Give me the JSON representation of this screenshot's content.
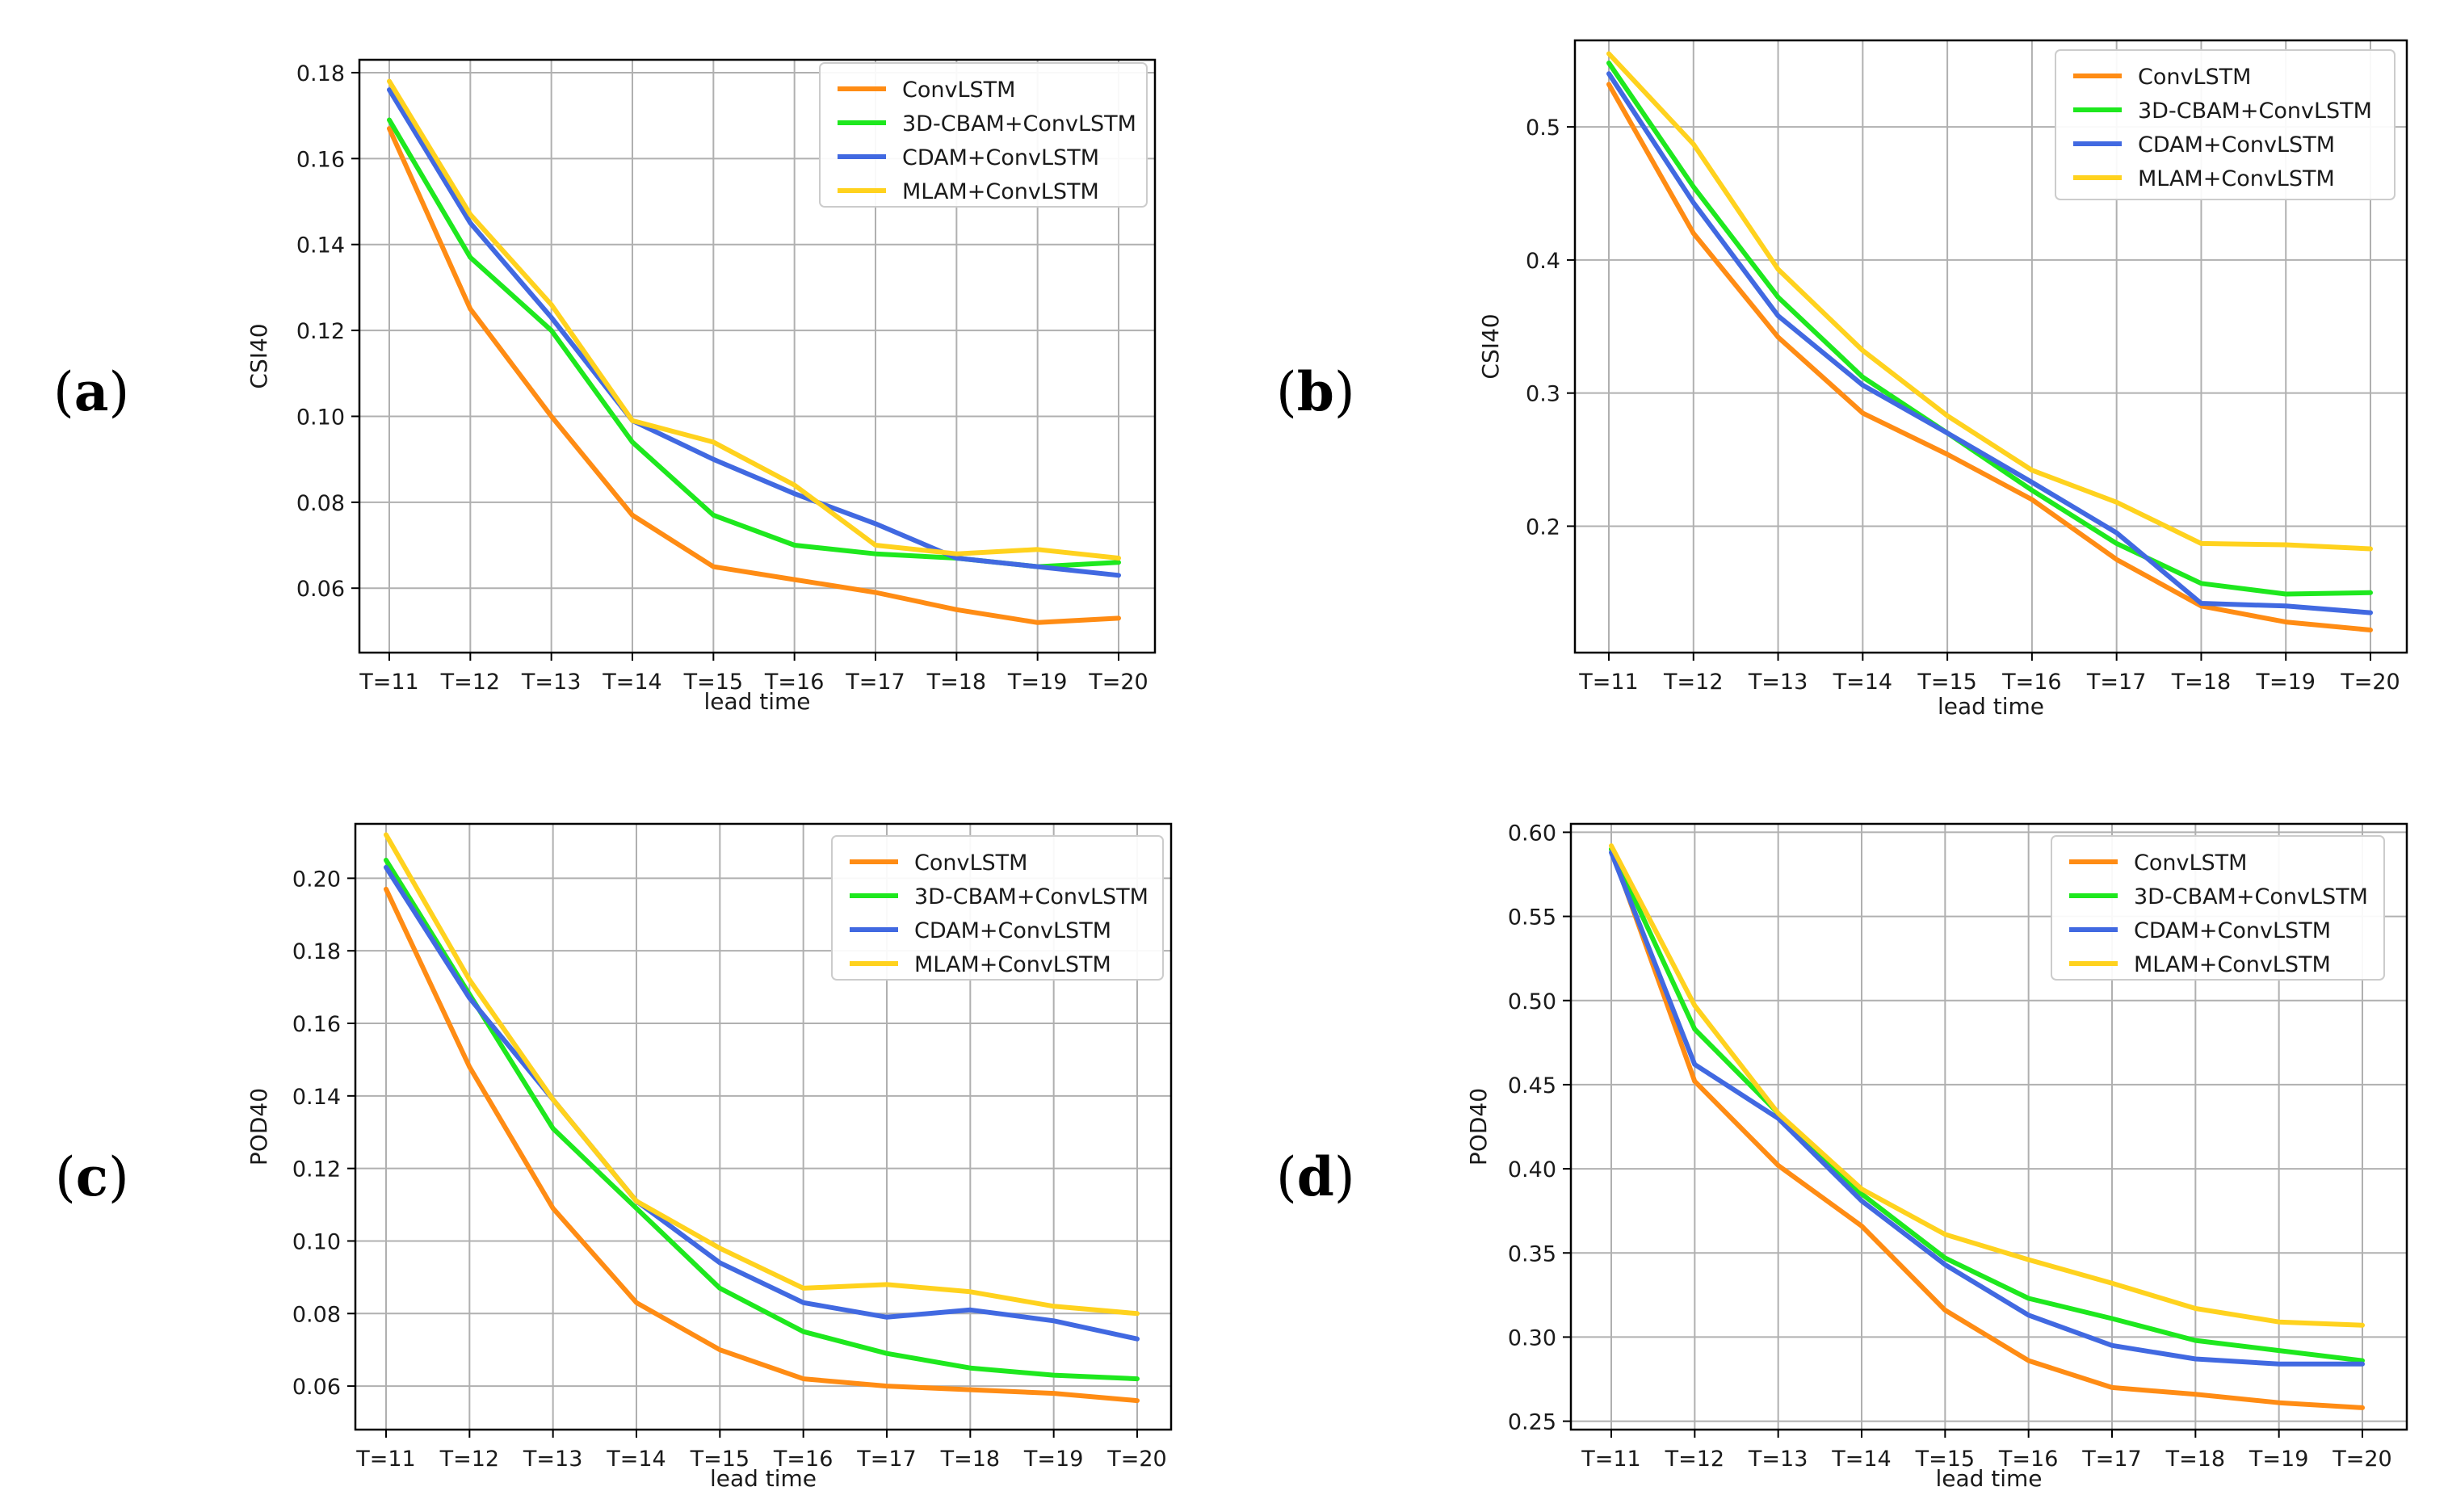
{
  "figure": {
    "panel_labels": [
      "a",
      "b",
      "c",
      "d"
    ],
    "legend_entries": [
      "ConvLSTM",
      "3D-CBAM+ConvLSTM",
      "CDAM+ConvLSTM",
      "MLAM+ConvLSTM"
    ],
    "series_colors": [
      "#ff8c14",
      "#1ee81e",
      "#4169e1",
      "#ffd21e"
    ]
  },
  "chart_data": [
    {
      "id": "a",
      "type": "line",
      "title": "",
      "xlabel": "lead time",
      "ylabel": "CSI40",
      "categories": [
        "T=11",
        "T=12",
        "T=13",
        "T=14",
        "T=15",
        "T=16",
        "T=17",
        "T=18",
        "T=19",
        "T=20"
      ],
      "ylim": [
        0.045,
        0.183
      ],
      "yticks": [
        0.06,
        0.08,
        0.1,
        0.12,
        0.14,
        0.16,
        0.18
      ],
      "ytick_labels": [
        "0.06",
        "0.08",
        "0.10",
        "0.12",
        "0.14",
        "0.16",
        "0.18"
      ],
      "grid": true,
      "legend": "top-right",
      "series": [
        {
          "name": "ConvLSTM",
          "color": "#ff8c14",
          "values": [
            0.167,
            0.125,
            0.1,
            0.077,
            0.065,
            0.062,
            0.059,
            0.055,
            0.052,
            0.053
          ]
        },
        {
          "name": "3D-CBAM+ConvLSTM",
          "color": "#1ee81e",
          "values": [
            0.169,
            0.137,
            0.12,
            0.094,
            0.077,
            0.07,
            0.068,
            0.067,
            0.065,
            0.066
          ]
        },
        {
          "name": "CDAM+ConvLSTM",
          "color": "#4169e1",
          "values": [
            0.176,
            0.145,
            0.123,
            0.099,
            0.09,
            0.082,
            0.075,
            0.067,
            0.065,
            0.063
          ]
        },
        {
          "name": "MLAM+ConvLSTM",
          "color": "#ffd21e",
          "values": [
            0.178,
            0.147,
            0.126,
            0.099,
            0.094,
            0.084,
            0.07,
            0.068,
            0.069,
            0.067
          ]
        }
      ]
    },
    {
      "id": "b",
      "type": "line",
      "title": "",
      "xlabel": "lead time",
      "ylabel": "CSI40",
      "categories": [
        "T=11",
        "T=12",
        "T=13",
        "T=14",
        "T=15",
        "T=16",
        "T=17",
        "T=18",
        "T=19",
        "T=20"
      ],
      "ylim": [
        0.105,
        0.565
      ],
      "yticks": [
        0.2,
        0.3,
        0.4,
        0.5
      ],
      "ytick_labels": [
        "0.2",
        "0.3",
        "0.4",
        "0.5"
      ],
      "grid": true,
      "legend": "top-right",
      "series": [
        {
          "name": "ConvLSTM",
          "color": "#ff8c14",
          "values": [
            0.532,
            0.42,
            0.342,
            0.285,
            0.254,
            0.22,
            0.175,
            0.14,
            0.128,
            0.122
          ]
        },
        {
          "name": "3D-CBAM+ConvLSTM",
          "color": "#1ee81e",
          "values": [
            0.548,
            0.455,
            0.372,
            0.312,
            0.27,
            0.227,
            0.187,
            0.157,
            0.149,
            0.15
          ]
        },
        {
          "name": "CDAM+ConvLSTM",
          "color": "#4169e1",
          "values": [
            0.54,
            0.443,
            0.358,
            0.306,
            0.27,
            0.233,
            0.195,
            0.142,
            0.14,
            0.135
          ]
        },
        {
          "name": "MLAM+ConvLSTM",
          "color": "#ffd21e",
          "values": [
            0.555,
            0.487,
            0.393,
            0.332,
            0.283,
            0.242,
            0.218,
            0.187,
            0.186,
            0.183
          ]
        }
      ]
    },
    {
      "id": "c",
      "type": "line",
      "title": "",
      "xlabel": "lead time",
      "ylabel": "POD40",
      "categories": [
        "T=11",
        "T=12",
        "T=13",
        "T=14",
        "T=15",
        "T=16",
        "T=17",
        "T=18",
        "T=19",
        "T=20"
      ],
      "ylim": [
        0.048,
        0.215
      ],
      "yticks": [
        0.06,
        0.08,
        0.1,
        0.12,
        0.14,
        0.16,
        0.18,
        0.2
      ],
      "ytick_labels": [
        "0.06",
        "0.08",
        "0.10",
        "0.12",
        "0.14",
        "0.16",
        "0.18",
        "0.20"
      ],
      "grid": true,
      "legend": "top-right",
      "series": [
        {
          "name": "ConvLSTM",
          "color": "#ff8c14",
          "values": [
            0.197,
            0.148,
            0.109,
            0.083,
            0.07,
            0.062,
            0.06,
            0.059,
            0.058,
            0.056
          ]
        },
        {
          "name": "3D-CBAM+ConvLSTM",
          "color": "#1ee81e",
          "values": [
            0.205,
            0.168,
            0.131,
            0.109,
            0.087,
            0.075,
            0.069,
            0.065,
            0.063,
            0.062
          ]
        },
        {
          "name": "CDAM+ConvLSTM",
          "color": "#4169e1",
          "values": [
            0.203,
            0.167,
            0.139,
            0.111,
            0.094,
            0.083,
            0.079,
            0.081,
            0.078,
            0.073
          ]
        },
        {
          "name": "MLAM+ConvLSTM",
          "color": "#ffd21e",
          "values": [
            0.212,
            0.172,
            0.139,
            0.111,
            0.098,
            0.087,
            0.088,
            0.086,
            0.082,
            0.08
          ]
        }
      ]
    },
    {
      "id": "d",
      "type": "line",
      "title": "",
      "xlabel": "lead time",
      "ylabel": "POD40",
      "categories": [
        "T=11",
        "T=12",
        "T=13",
        "T=14",
        "T=15",
        "T=16",
        "T=17",
        "T=18",
        "T=19",
        "T=20"
      ],
      "ylim": [
        0.245,
        0.605
      ],
      "yticks": [
        0.25,
        0.3,
        0.35,
        0.4,
        0.45,
        0.5,
        0.55,
        0.6
      ],
      "ytick_labels": [
        "0.25",
        "0.30",
        "0.35",
        "0.40",
        "0.45",
        "0.50",
        "0.55",
        "0.60"
      ],
      "grid": true,
      "legend": "top-right",
      "series": [
        {
          "name": "ConvLSTM",
          "color": "#ff8c14",
          "values": [
            0.59,
            0.452,
            0.402,
            0.366,
            0.316,
            0.286,
            0.27,
            0.266,
            0.261,
            0.258
          ]
        },
        {
          "name": "3D-CBAM+ConvLSTM",
          "color": "#1ee81e",
          "values": [
            0.59,
            0.483,
            0.433,
            0.385,
            0.347,
            0.323,
            0.311,
            0.298,
            0.292,
            0.286
          ]
        },
        {
          "name": "CDAM+ConvLSTM",
          "color": "#4169e1",
          "values": [
            0.588,
            0.462,
            0.43,
            0.381,
            0.343,
            0.313,
            0.295,
            0.287,
            0.284,
            0.284
          ]
        },
        {
          "name": "MLAM+ConvLSTM",
          "color": "#ffd21e",
          "values": [
            0.592,
            0.497,
            0.433,
            0.388,
            0.361,
            0.346,
            0.332,
            0.317,
            0.309,
            0.307
          ]
        }
      ]
    }
  ]
}
